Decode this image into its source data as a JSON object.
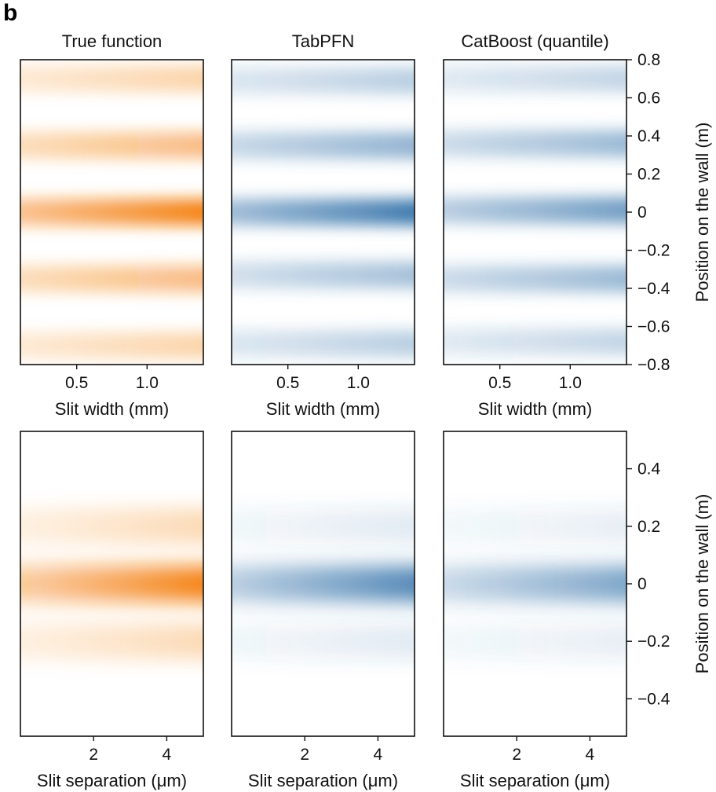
{
  "panel_label": "b",
  "chart_data": [
    {
      "type": "heatmap",
      "title": "True function",
      "colormap": "#f47f0f",
      "xlabel": "Slit width (mm)",
      "ylabel": "",
      "xlim": [
        0.1,
        1.4
      ],
      "ylim": [
        -0.8,
        0.8
      ],
      "xticks": [
        0.5,
        1.0
      ],
      "xtick_labels": [
        "0.5",
        "1.0"
      ],
      "fringe_centers": [
        0.7,
        0.35,
        0,
        -0.35,
        -0.7
      ],
      "fringe_intensity": [
        0.35,
        0.55,
        1.0,
        0.55,
        0.35
      ]
    },
    {
      "type": "heatmap",
      "title": "TabPFN",
      "colormap": "#2f6fa8",
      "xlabel": "Slit width (mm)",
      "ylabel": "",
      "xlim": [
        0.1,
        1.4
      ],
      "ylim": [
        -0.8,
        0.8
      ],
      "xticks": [
        0.5,
        1.0
      ],
      "xtick_labels": [
        "0.5",
        "1.0"
      ],
      "fringe_centers": [
        0.69,
        0.35,
        0,
        -0.33,
        -0.69
      ],
      "fringe_intensity": [
        0.35,
        0.55,
        0.95,
        0.45,
        0.35
      ]
    },
    {
      "type": "heatmap",
      "title": "CatBoost (quantile)",
      "colormap": "#2f6fa8",
      "xlabel": "Slit width (mm)",
      "ylabel": "Position on the wall (m)",
      "xlim": [
        0.1,
        1.4
      ],
      "ylim": [
        -0.8,
        0.8
      ],
      "xticks": [
        0.5,
        1.0
      ],
      "xtick_labels": [
        "0.5",
        "1.0"
      ],
      "yticks": [
        0.8,
        0.6,
        0.4,
        0.2,
        0,
        -0.2,
        -0.4,
        -0.6,
        -0.8
      ],
      "ytick_labels": [
        "0.8",
        "0.6",
        "0.4",
        "0.2",
        "0",
        "−0.2",
        "−0.4",
        "−0.6",
        "−0.8"
      ],
      "fringe_centers": [
        0.7,
        0.36,
        0.01,
        -0.35,
        -0.68
      ],
      "fringe_intensity": [
        0.3,
        0.5,
        0.7,
        0.5,
        0.3
      ]
    },
    {
      "type": "heatmap",
      "title": "",
      "colormap": "#f47f0f",
      "xlabel": "Slit separation (μm)",
      "ylabel": "",
      "xlim": [
        0,
        5
      ],
      "ylim": [
        -0.53,
        0.53
      ],
      "xticks": [
        2,
        4
      ],
      "xtick_labels": [
        "2",
        "4"
      ],
      "fringe_centers": [
        0,
        0.2,
        -0.2
      ],
      "fringe_intensity": [
        1.0,
        0.3,
        0.3
      ]
    },
    {
      "type": "heatmap",
      "title": "",
      "colormap": "#2f6fa8",
      "xlabel": "Slit separation (μm)",
      "ylabel": "",
      "xlim": [
        0,
        5
      ],
      "ylim": [
        -0.53,
        0.53
      ],
      "xticks": [
        2,
        4
      ],
      "xtick_labels": [
        "2",
        "4"
      ],
      "fringe_centers": [
        0,
        0.2,
        -0.2
      ],
      "fringe_intensity": [
        0.85,
        0.15,
        0.15
      ]
    },
    {
      "type": "heatmap",
      "title": "",
      "colormap": "#2f6fa8",
      "xlabel": "Slit separation (μm)",
      "ylabel": "Position on the wall (m)",
      "xlim": [
        0,
        5
      ],
      "ylim": [
        -0.53,
        0.53
      ],
      "xticks": [
        2,
        4
      ],
      "xtick_labels": [
        "2",
        "4"
      ],
      "yticks": [
        0.4,
        0.2,
        0,
        -0.2,
        -0.4
      ],
      "ytick_labels": [
        "0.4",
        "0.2",
        "0",
        "−0.2",
        "−0.4"
      ],
      "fringe_centers": [
        0,
        0.2,
        -0.2
      ],
      "fringe_intensity": [
        0.65,
        0.12,
        0.12
      ]
    }
  ]
}
